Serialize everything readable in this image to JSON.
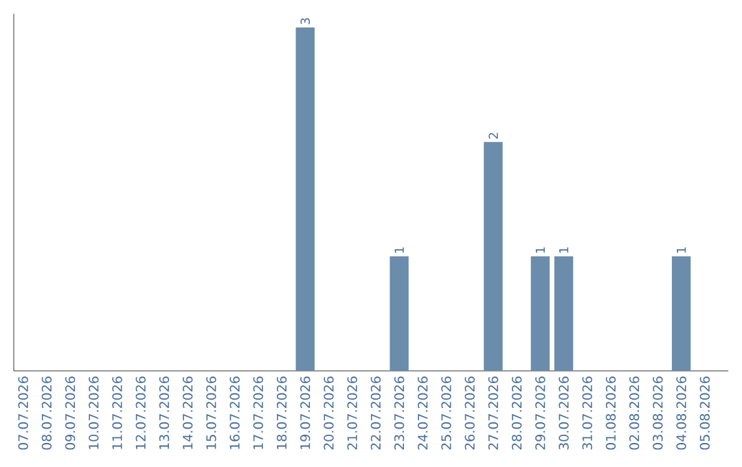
{
  "chart_data": {
    "type": "bar",
    "categories": [
      "07.07.2026",
      "08.07.2026",
      "09.07.2026",
      "10.07.2026",
      "11.07.2026",
      "12.07.2026",
      "13.07.2026",
      "14.07.2026",
      "15.07.2026",
      "16.07.2026",
      "17.07.2026",
      "18.07.2026",
      "19.07.2026",
      "20.07.2026",
      "21.07.2026",
      "22.07.2026",
      "23.07.2026",
      "24.07.2026",
      "25.07.2026",
      "26.07.2026",
      "27.07.2026",
      "28.07.2026",
      "29.07.2026",
      "30.07.2026",
      "31.07.2026",
      "01.08.2026",
      "02.08.2026",
      "03.08.2026",
      "04.08.2026",
      "05.08.2026"
    ],
    "values": [
      null,
      null,
      null,
      null,
      null,
      null,
      null,
      null,
      null,
      null,
      null,
      null,
      3,
      null,
      null,
      null,
      1,
      null,
      null,
      null,
      2,
      null,
      1,
      1,
      null,
      null,
      null,
      null,
      1,
      null
    ],
    "data_labels": true,
    "color": "#6b8cab",
    "tick_labels": "x"
  }
}
